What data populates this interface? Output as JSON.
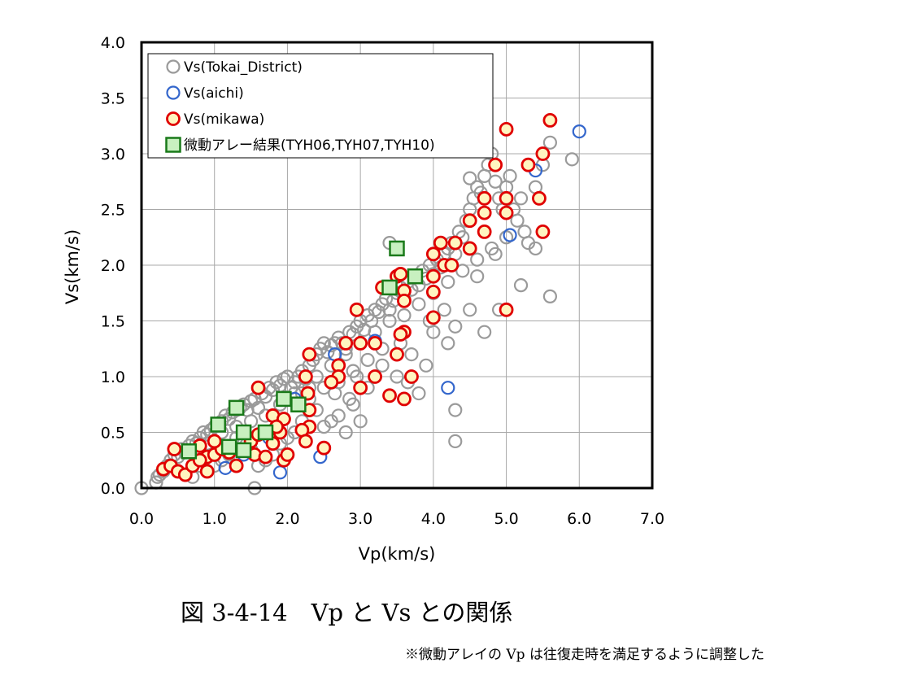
{
  "chart_data": {
    "type": "scatter",
    "xlabel": "Vp(km/s)",
    "ylabel": "Vs(km/s)",
    "xlim": [
      0,
      7
    ],
    "ylim": [
      0,
      4
    ],
    "xticks": [
      "0.0",
      "1.0",
      "2.0",
      "3.0",
      "4.0",
      "5.0",
      "6.0",
      "7.0"
    ],
    "yticks": [
      "0.0",
      "0.5",
      "1.0",
      "1.5",
      "2.0",
      "2.5",
      "3.0",
      "3.5",
      "4.0"
    ],
    "grid": true,
    "legend_position": "top-left",
    "series": [
      {
        "name": "Vs(Tokai_District)",
        "marker": "open-circle",
        "color": "#9a9a9a",
        "points": [
          [
            0.0,
            0.0
          ],
          [
            0.2,
            0.05
          ],
          [
            0.22,
            0.1
          ],
          [
            0.25,
            0.12
          ],
          [
            0.3,
            0.15
          ],
          [
            0.35,
            0.2
          ],
          [
            0.4,
            0.25
          ],
          [
            0.45,
            0.3
          ],
          [
            0.5,
            0.28
          ],
          [
            0.55,
            0.35
          ],
          [
            0.6,
            0.32
          ],
          [
            0.65,
            0.38
          ],
          [
            0.7,
            0.42
          ],
          [
            0.75,
            0.4
          ],
          [
            0.8,
            0.45
          ],
          [
            0.85,
            0.5
          ],
          [
            0.9,
            0.48
          ],
          [
            0.95,
            0.52
          ],
          [
            1.0,
            0.55
          ],
          [
            1.05,
            0.58
          ],
          [
            1.1,
            0.6
          ],
          [
            1.15,
            0.65
          ],
          [
            1.2,
            0.62
          ],
          [
            1.25,
            0.68
          ],
          [
            1.3,
            0.7
          ],
          [
            1.35,
            0.72
          ],
          [
            1.4,
            0.75
          ],
          [
            1.45,
            0.7
          ],
          [
            1.5,
            0.78
          ],
          [
            1.55,
            0.8
          ],
          [
            1.6,
            0.72
          ],
          [
            1.65,
            0.85
          ],
          [
            1.7,
            0.82
          ],
          [
            1.75,
            0.9
          ],
          [
            1.8,
            0.88
          ],
          [
            1.85,
            0.95
          ],
          [
            1.9,
            0.92
          ],
          [
            1.95,
            0.98
          ],
          [
            2.0,
            1.0
          ],
          [
            2.05,
            0.9
          ],
          [
            2.1,
            0.95
          ],
          [
            2.15,
            1.0
          ],
          [
            2.2,
            1.05
          ],
          [
            2.25,
            0.98
          ],
          [
            2.3,
            1.1
          ],
          [
            2.35,
            1.15
          ],
          [
            2.4,
            1.2
          ],
          [
            2.45,
            1.25
          ],
          [
            2.5,
            1.3
          ],
          [
            2.55,
            1.22
          ],
          [
            2.6,
            1.28
          ],
          [
            2.65,
            1.3
          ],
          [
            2.7,
            1.35
          ],
          [
            2.75,
            1.3
          ],
          [
            2.8,
            1.25
          ],
          [
            2.85,
            1.4
          ],
          [
            2.9,
            1.38
          ],
          [
            2.95,
            1.45
          ],
          [
            3.0,
            1.5
          ],
          [
            3.05,
            1.42
          ],
          [
            3.1,
            1.55
          ],
          [
            3.15,
            1.5
          ],
          [
            3.2,
            1.6
          ],
          [
            3.25,
            1.58
          ],
          [
            3.3,
            1.65
          ],
          [
            3.35,
            1.7
          ],
          [
            3.4,
            1.6
          ],
          [
            3.45,
            1.68
          ],
          [
            3.5,
            1.75
          ],
          [
            3.55,
            1.8
          ],
          [
            3.6,
            1.72
          ],
          [
            3.65,
            1.85
          ],
          [
            3.7,
            1.78
          ],
          [
            3.75,
            1.9
          ],
          [
            3.8,
            1.82
          ],
          [
            3.85,
            1.95
          ],
          [
            3.9,
            1.88
          ],
          [
            3.95,
            2.0
          ],
          [
            4.0,
            1.92
          ],
          [
            4.05,
            2.05
          ],
          [
            4.1,
            1.98
          ],
          [
            4.15,
            2.1
          ],
          [
            4.2,
            2.15
          ],
          [
            4.25,
            2.2
          ],
          [
            4.3,
            2.1
          ],
          [
            4.35,
            2.3
          ],
          [
            4.4,
            2.25
          ],
          [
            4.45,
            2.4
          ],
          [
            4.5,
            2.5
          ],
          [
            4.55,
            2.6
          ],
          [
            4.6,
            2.7
          ],
          [
            4.65,
            2.65
          ],
          [
            4.7,
            2.8
          ],
          [
            4.75,
            2.9
          ],
          [
            4.8,
            3.0
          ],
          [
            4.85,
            2.75
          ],
          [
            4.9,
            2.6
          ],
          [
            4.95,
            2.5
          ],
          [
            5.0,
            2.7
          ],
          [
            5.05,
            2.8
          ],
          [
            5.1,
            2.5
          ],
          [
            5.15,
            2.4
          ],
          [
            5.2,
            2.6
          ],
          [
            5.25,
            2.3
          ],
          [
            5.3,
            2.2
          ],
          [
            5.4,
            2.7
          ],
          [
            5.5,
            2.9
          ],
          [
            5.6,
            3.1
          ],
          [
            5.9,
            2.95
          ],
          [
            5.6,
            1.72
          ],
          [
            5.2,
            1.82
          ],
          [
            4.9,
            1.6
          ],
          [
            4.7,
            1.4
          ],
          [
            4.5,
            1.6
          ],
          [
            4.3,
            1.45
          ],
          [
            4.2,
            1.3
          ],
          [
            4.0,
            1.4
          ],
          [
            3.9,
            1.1
          ],
          [
            3.8,
            0.85
          ],
          [
            3.7,
            1.2
          ],
          [
            4.3,
            0.7
          ],
          [
            4.3,
            0.42
          ],
          [
            3.5,
            1.0
          ],
          [
            3.3,
            1.1
          ],
          [
            3.1,
            0.9
          ],
          [
            3.0,
            0.6
          ],
          [
            2.9,
            0.75
          ],
          [
            2.8,
            0.5
          ],
          [
            2.7,
            0.65
          ],
          [
            2.6,
            0.6
          ],
          [
            2.5,
            0.55
          ],
          [
            2.4,
            0.7
          ],
          [
            2.3,
            0.8
          ],
          [
            2.2,
            0.6
          ],
          [
            2.1,
            0.5
          ],
          [
            2.0,
            0.45
          ],
          [
            1.9,
            0.4
          ],
          [
            1.8,
            0.3
          ],
          [
            1.7,
            0.25
          ],
          [
            1.6,
            0.2
          ],
          [
            1.55,
            0.0
          ],
          [
            1.5,
            0.35
          ],
          [
            1.4,
            0.4
          ],
          [
            1.3,
            0.45
          ],
          [
            1.2,
            0.3
          ],
          [
            1.1,
            0.25
          ],
          [
            1.0,
            0.2
          ],
          [
            0.9,
            0.15
          ],
          [
            0.8,
            0.2
          ],
          [
            0.7,
            0.1
          ],
          [
            2.2,
            0.85
          ],
          [
            2.4,
            1.0
          ],
          [
            2.6,
            1.1
          ],
          [
            2.8,
            1.2
          ],
          [
            3.0,
            1.3
          ],
          [
            3.2,
            1.4
          ],
          [
            3.4,
            1.5
          ],
          [
            3.6,
            1.55
          ],
          [
            3.8,
            1.65
          ],
          [
            4.0,
            1.75
          ],
          [
            4.2,
            1.85
          ],
          [
            4.4,
            1.95
          ],
          [
            4.6,
            2.05
          ],
          [
            4.8,
            2.15
          ],
          [
            5.0,
            2.25
          ],
          [
            2.5,
            0.9
          ],
          [
            2.7,
            0.95
          ],
          [
            2.9,
            1.05
          ],
          [
            3.1,
            1.15
          ],
          [
            3.3,
            1.25
          ],
          [
            1.7,
            0.65
          ],
          [
            1.9,
            0.75
          ],
          [
            2.1,
            0.85
          ],
          [
            2.3,
            0.9
          ],
          [
            1.5,
            0.6
          ],
          [
            1.3,
            0.55
          ],
          [
            1.1,
            0.5
          ],
          [
            0.9,
            0.4
          ],
          [
            2.65,
            0.85
          ],
          [
            2.85,
            0.8
          ],
          [
            3.4,
            2.2
          ],
          [
            4.6,
            1.9
          ],
          [
            4.85,
            2.1
          ],
          [
            5.4,
            2.15
          ],
          [
            4.5,
            2.78
          ],
          [
            3.95,
            1.5
          ],
          [
            4.15,
            1.6
          ],
          [
            2.95,
            1.0
          ],
          [
            3.55,
            1.3
          ],
          [
            3.65,
            0.95
          ]
        ]
      },
      {
        "name": "Vs(aichi)",
        "marker": "open-circle",
        "color": "#3366cc",
        "points": [
          [
            6.0,
            3.2
          ],
          [
            5.4,
            2.85
          ],
          [
            5.05,
            2.27
          ],
          [
            4.2,
            0.9
          ],
          [
            2.45,
            0.28
          ],
          [
            1.9,
            0.14
          ],
          [
            1.15,
            0.18
          ],
          [
            3.2,
            1.32
          ],
          [
            2.65,
            1.2
          ],
          [
            1.4,
            0.3
          ],
          [
            2.1,
            0.8
          ],
          [
            1.75,
            0.45
          ]
        ]
      },
      {
        "name": "Vs(mikawa)",
        "marker": "filled-circle",
        "color": "#e00000",
        "fill": "#fff5c0",
        "points": [
          [
            5.6,
            3.3
          ],
          [
            5.0,
            3.22
          ],
          [
            5.5,
            3.0
          ],
          [
            5.3,
            2.9
          ],
          [
            4.85,
            2.9
          ],
          [
            4.7,
            2.6
          ],
          [
            5.0,
            2.6
          ],
          [
            5.45,
            2.6
          ],
          [
            4.7,
            2.47
          ],
          [
            5.0,
            2.47
          ],
          [
            4.5,
            2.4
          ],
          [
            4.7,
            2.3
          ],
          [
            5.5,
            2.3
          ],
          [
            4.1,
            2.2
          ],
          [
            4.3,
            2.2
          ],
          [
            4.5,
            2.15
          ],
          [
            4.0,
            2.1
          ],
          [
            4.15,
            2.0
          ],
          [
            4.25,
            2.0
          ],
          [
            3.5,
            1.9
          ],
          [
            3.55,
            1.92
          ],
          [
            4.0,
            1.9
          ],
          [
            3.3,
            1.8
          ],
          [
            3.6,
            1.77
          ],
          [
            4.0,
            1.76
          ],
          [
            3.6,
            1.68
          ],
          [
            2.95,
            1.6
          ],
          [
            4.0,
            1.53
          ],
          [
            5.0,
            1.6
          ],
          [
            3.6,
            1.4
          ],
          [
            3.55,
            1.38
          ],
          [
            2.8,
            1.3
          ],
          [
            3.0,
            1.3
          ],
          [
            3.2,
            1.3
          ],
          [
            3.5,
            1.2
          ],
          [
            2.3,
            1.2
          ],
          [
            2.7,
            1.1
          ],
          [
            2.25,
            1.0
          ],
          [
            2.7,
            1.0
          ],
          [
            3.2,
            1.0
          ],
          [
            3.7,
            1.0
          ],
          [
            2.6,
            0.95
          ],
          [
            3.0,
            0.9
          ],
          [
            1.6,
            0.9
          ],
          [
            2.28,
            0.85
          ],
          [
            3.4,
            0.83
          ],
          [
            3.6,
            0.8
          ],
          [
            2.3,
            0.7
          ],
          [
            1.8,
            0.65
          ],
          [
            1.95,
            0.62
          ],
          [
            2.3,
            0.55
          ],
          [
            2.2,
            0.52
          ],
          [
            1.9,
            0.5
          ],
          [
            2.25,
            0.42
          ],
          [
            1.5,
            0.42
          ],
          [
            1.8,
            0.4
          ],
          [
            2.5,
            0.36
          ],
          [
            1.55,
            0.3
          ],
          [
            1.2,
            0.32
          ],
          [
            0.9,
            0.28
          ],
          [
            0.3,
            0.17
          ],
          [
            0.4,
            0.2
          ],
          [
            0.5,
            0.15
          ],
          [
            0.6,
            0.12
          ],
          [
            0.7,
            0.2
          ],
          [
            0.8,
            0.25
          ],
          [
            0.9,
            0.15
          ],
          [
            1.0,
            0.3
          ],
          [
            1.1,
            0.35
          ],
          [
            1.3,
            0.2
          ],
          [
            1.7,
            0.28
          ],
          [
            1.95,
            0.25
          ],
          [
            0.45,
            0.35
          ],
          [
            0.8,
            0.38
          ],
          [
            1.0,
            0.42
          ],
          [
            1.85,
            0.55
          ],
          [
            1.6,
            0.48
          ],
          [
            2.0,
            0.3
          ]
        ]
      },
      {
        "name": "微動アレー結果(TYH06,TYH07,TYH10)",
        "marker": "square",
        "color": "#1a7a1a",
        "fill": "#c8f0c0",
        "points": [
          [
            3.5,
            2.15
          ],
          [
            3.75,
            1.9
          ],
          [
            3.4,
            1.8
          ],
          [
            1.95,
            0.8
          ],
          [
            2.15,
            0.75
          ],
          [
            1.3,
            0.72
          ],
          [
            1.05,
            0.57
          ],
          [
            1.4,
            0.5
          ],
          [
            1.7,
            0.5
          ],
          [
            1.2,
            0.37
          ],
          [
            0.65,
            0.33
          ],
          [
            1.4,
            0.34
          ]
        ]
      }
    ]
  },
  "caption": "図 3-4-14　Vp と Vs との関係",
  "note": "※微動アレイの Vp は往復走時を満足するように調整した"
}
